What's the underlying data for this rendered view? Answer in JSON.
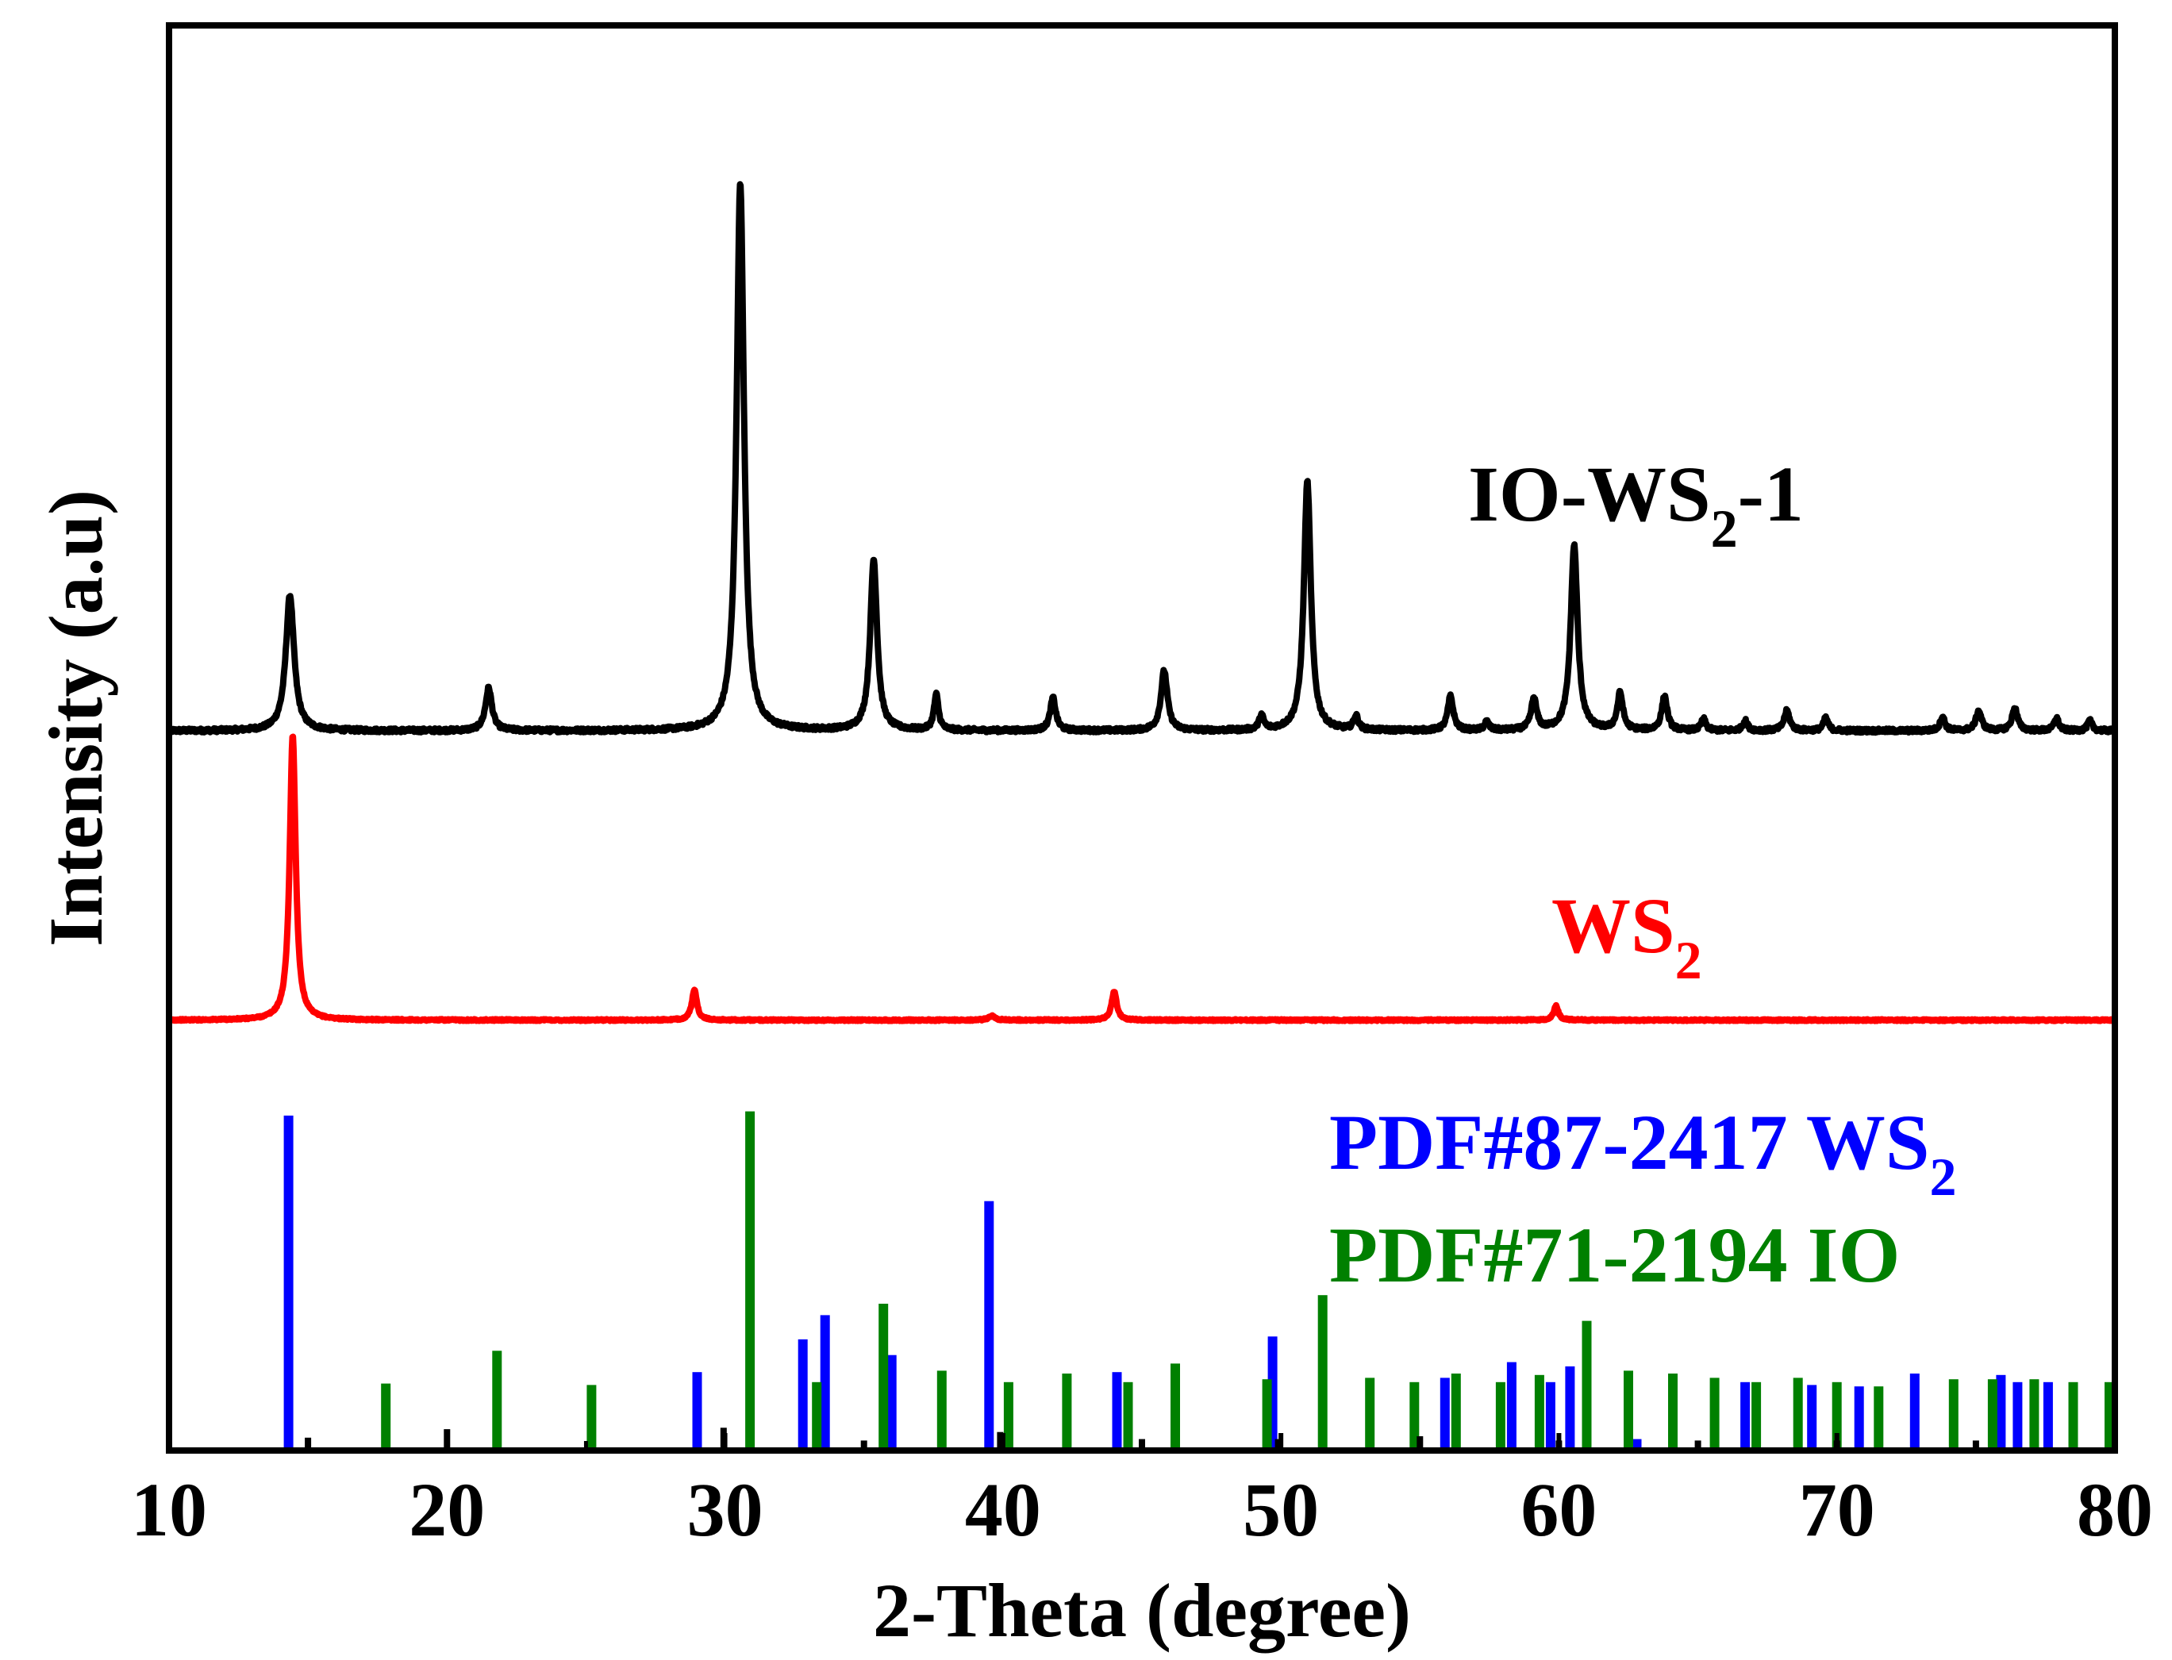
{
  "chart_data": {
    "type": "line",
    "xlabel": "2-Theta (degree)",
    "ylabel": "Intensity (a.u)",
    "xlim": [
      10,
      80
    ],
    "ylim": [
      0,
      100
    ],
    "xticks": [
      "10",
      "20",
      "30",
      "40",
      "50",
      "60",
      "70",
      "80"
    ],
    "grid": false,
    "series": [
      {
        "name": "IO-WS2-1",
        "label_main": "IO-WS",
        "label_sub": "2",
        "label_suffix": "-1",
        "color": "#000000",
        "baseline": 50.5,
        "noise": 0.28,
        "peaks": [
          [
            14.35,
            9.5,
            0.18
          ],
          [
            21.5,
            3.0,
            0.14
          ],
          [
            30.55,
            38.5,
            0.16
          ],
          [
            35.35,
            12.0,
            0.15
          ],
          [
            37.6,
            2.5,
            0.1
          ],
          [
            41.8,
            2.3,
            0.12
          ],
          [
            45.8,
            4.2,
            0.14
          ],
          [
            49.3,
            1.0,
            0.1
          ],
          [
            50.95,
            17.5,
            0.15
          ],
          [
            52.7,
            1.0,
            0.1
          ],
          [
            56.1,
            2.4,
            0.12
          ],
          [
            57.4,
            0.6,
            0.1
          ],
          [
            59.1,
            2.2,
            0.12
          ],
          [
            60.55,
            13.0,
            0.15
          ],
          [
            62.2,
            2.6,
            0.12
          ],
          [
            63.8,
            2.4,
            0.12
          ],
          [
            65.2,
            0.8,
            0.1
          ],
          [
            66.7,
            0.7,
            0.1
          ],
          [
            68.2,
            1.4,
            0.12
          ],
          [
            69.6,
            0.9,
            0.1
          ],
          [
            73.8,
            1.0,
            0.1
          ],
          [
            75.1,
            1.4,
            0.12
          ],
          [
            76.4,
            1.6,
            0.12
          ],
          [
            77.9,
            0.9,
            0.1
          ],
          [
            79.1,
            0.7,
            0.1
          ]
        ]
      },
      {
        "name": "WS2",
        "label_main": "WS",
        "label_sub": "2",
        "label_suffix": "",
        "color": "#ff0000",
        "baseline": 30.2,
        "noise": 0.12,
        "peaks": [
          [
            14.45,
            20.0,
            0.13
          ],
          [
            28.9,
            2.1,
            0.11
          ],
          [
            39.6,
            0.3,
            0.14
          ],
          [
            44.0,
            2.0,
            0.11
          ],
          [
            59.9,
            1.0,
            0.1
          ]
        ]
      }
    ],
    "reference_patterns": [
      {
        "name": "PDF#87-2417 WS2",
        "label_main": "PDF#87-2417 WS",
        "label_sub": "2",
        "color": "#0000ff",
        "sticks": [
          [
            14.3,
            23.5
          ],
          [
            29.0,
            5.5
          ],
          [
            32.8,
            7.8
          ],
          [
            33.6,
            9.5
          ],
          [
            36.0,
            6.7
          ],
          [
            39.5,
            17.5
          ],
          [
            44.1,
            5.5
          ],
          [
            49.7,
            8.0
          ],
          [
            55.9,
            5.1
          ],
          [
            58.3,
            6.2
          ],
          [
            59.7,
            4.8
          ],
          [
            60.4,
            5.9
          ],
          [
            62.8,
            0.8
          ],
          [
            66.7,
            4.8
          ],
          [
            69.1,
            4.6
          ],
          [
            70.8,
            4.5
          ],
          [
            72.8,
            5.4
          ],
          [
            75.9,
            5.3
          ],
          [
            76.5,
            4.8
          ],
          [
            77.6,
            4.8
          ]
        ]
      },
      {
        "name": "PDF#71-2194 IO",
        "label_main": "PDF#71-2194 IO",
        "label_sub": "",
        "color": "#008000",
        "sticks": [
          [
            17.8,
            4.7
          ],
          [
            21.8,
            7.0
          ],
          [
            25.2,
            4.6
          ],
          [
            30.9,
            23.8
          ],
          [
            33.3,
            4.8
          ],
          [
            35.7,
            10.3
          ],
          [
            37.8,
            5.6
          ],
          [
            40.2,
            4.8
          ],
          [
            42.3,
            5.4
          ],
          [
            44.5,
            4.8
          ],
          [
            46.2,
            6.1
          ],
          [
            49.5,
            5.0
          ],
          [
            51.5,
            10.9
          ],
          [
            53.2,
            5.1
          ],
          [
            54.8,
            4.8
          ],
          [
            56.3,
            5.4
          ],
          [
            57.9,
            4.8
          ],
          [
            59.3,
            5.3
          ],
          [
            61.0,
            9.1
          ],
          [
            62.5,
            5.6
          ],
          [
            64.1,
            5.4
          ],
          [
            65.6,
            5.1
          ],
          [
            67.1,
            4.8
          ],
          [
            68.6,
            5.1
          ],
          [
            70.0,
            4.8
          ],
          [
            71.5,
            4.5
          ],
          [
            74.2,
            5.0
          ],
          [
            75.6,
            5.0
          ],
          [
            77.1,
            5.0
          ],
          [
            78.5,
            4.8
          ],
          [
            79.8,
            4.8
          ]
        ]
      }
    ],
    "minor_marks": [
      [
        15.0,
        0.9
      ],
      [
        20.0,
        1.5
      ],
      [
        29.95,
        1.6
      ],
      [
        35.0,
        0.7
      ],
      [
        39.9,
        1.3
      ],
      [
        45.0,
        0.8
      ],
      [
        49.9,
        0.8
      ],
      [
        55.0,
        1.0
      ],
      [
        60.0,
        0.7
      ],
      [
        65.0,
        0.7
      ],
      [
        70.0,
        0.7
      ],
      [
        75.0,
        0.7
      ]
    ]
  }
}
